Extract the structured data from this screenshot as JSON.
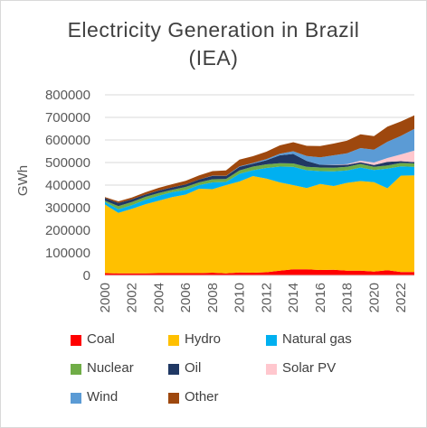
{
  "chart_data": {
    "type": "area",
    "stacked": true,
    "title_lines": [
      "Electricity Generation  in Brazil",
      "(IEA)"
    ],
    "ylabel": "GWh",
    "xlabel": "",
    "ylim": [
      0,
      800000
    ],
    "yticks": [
      0,
      100000,
      200000,
      300000,
      400000,
      500000,
      600000,
      700000,
      800000
    ],
    "xticks": [
      "2000",
      "2002",
      "2004",
      "2006",
      "2008",
      "2010",
      "2012",
      "2014",
      "2016",
      "2018",
      "2020",
      "2022"
    ],
    "grid": true,
    "legend_position": "bottom",
    "x": [
      2000,
      2001,
      2002,
      2003,
      2004,
      2005,
      2006,
      2007,
      2008,
      2009,
      2010,
      2011,
      2012,
      2013,
      2014,
      2015,
      2016,
      2017,
      2018,
      2019,
      2020,
      2021,
      2022,
      2023
    ],
    "series": [
      {
        "name": "Coal",
        "color": "#ff0000",
        "values": [
          10000,
          9000,
          9000,
          9000,
          10000,
          10000,
          10000,
          10000,
          12000,
          9000,
          13000,
          12000,
          14000,
          21000,
          27000,
          27000,
          24000,
          25000,
          21000,
          21000,
          17000,
          23000,
          15000,
          15000
        ]
      },
      {
        "name": "Hydro",
        "color": "#ffc000",
        "values": [
          304000,
          268000,
          286000,
          306000,
          321000,
          337000,
          348000,
          374000,
          370000,
          391000,
          403000,
          428000,
          415000,
          391000,
          373000,
          360000,
          381000,
          371000,
          389000,
          397000,
          396000,
          363000,
          427000,
          428000
        ]
      },
      {
        "name": "Natural gas",
        "color": "#00b0f0",
        "values": [
          12000,
          16000,
          16000,
          20000,
          22000,
          22000,
          20000,
          16000,
          30000,
          14000,
          34000,
          26000,
          47000,
          70000,
          81000,
          79000,
          57000,
          65000,
          55000,
          60000,
          54000,
          87000,
          41000,
          38000
        ]
      },
      {
        "name": "Nuclear",
        "color": "#70ad47",
        "values": [
          5000,
          14000,
          14000,
          13000,
          12000,
          10000,
          14000,
          12000,
          14000,
          13000,
          15000,
          16000,
          16000,
          15000,
          15000,
          15000,
          16000,
          16000,
          16000,
          16000,
          14000,
          14000,
          15000,
          15000
        ]
      },
      {
        "name": "Oil",
        "color": "#203864",
        "values": [
          12000,
          14000,
          12000,
          10000,
          11000,
          11000,
          11000,
          13000,
          15000,
          13000,
          16000,
          13000,
          18000,
          35000,
          42000,
          26000,
          12000,
          12000,
          9000,
          7000,
          8000,
          16000,
          8000,
          6000
        ]
      },
      {
        "name": "Solar PV",
        "color": "#ffc7ce",
        "values": [
          0,
          0,
          0,
          0,
          0,
          0,
          0,
          0,
          0,
          0,
          0,
          0,
          0,
          0,
          0,
          0,
          0,
          1000,
          3000,
          7000,
          11000,
          17000,
          30000,
          51000
        ]
      },
      {
        "name": "Wind",
        "color": "#5b9bd5",
        "values": [
          0,
          0,
          0,
          0,
          0,
          0,
          0,
          0,
          1000,
          1000,
          2000,
          3000,
          5000,
          7000,
          12000,
          22000,
          33000,
          42000,
          48000,
          56000,
          57000,
          72000,
          82000,
          96000
        ]
      },
      {
        "name": "Other",
        "color": "#9e480e",
        "values": [
          4000,
          7000,
          8000,
          10000,
          12000,
          14000,
          16000,
          18000,
          20000,
          24000,
          30000,
          30000,
          33000,
          37000,
          40000,
          45000,
          50000,
          52000,
          56000,
          61000,
          60000,
          67000,
          64000,
          60000
        ]
      }
    ]
  }
}
